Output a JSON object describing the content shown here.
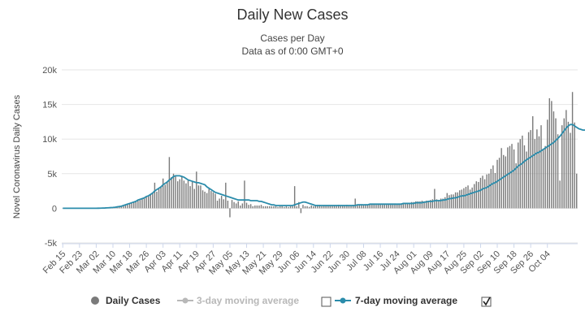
{
  "chart_data": {
    "type": "bar",
    "title": "Daily New Cases",
    "subtitle_lines": [
      "Cases per Day",
      "Data as of 0:00 GMT+0"
    ],
    "ylabel": "Novel Coronavirus Daily Cases",
    "xlabel": "",
    "ylim": [
      -5000,
      20000
    ],
    "yticks": [
      -5000,
      0,
      5000,
      10000,
      15000,
      20000
    ],
    "ytick_labels": [
      "-5k",
      "0",
      "5k",
      "10k",
      "15k",
      "20k"
    ],
    "x_tick_labels": [
      "Feb 15",
      "Feb 23",
      "Mar 02",
      "Mar 10",
      "Mar 18",
      "Mar 26",
      "Apr 03",
      "Apr 11",
      "Apr 19",
      "Apr 27",
      "May 05",
      "May 13",
      "May 21",
      "May 29",
      "Jun 06",
      "Jun 14",
      "Jun 22",
      "Jun 30",
      "Jul 08",
      "Jul 16",
      "Jul 24",
      "Aug 01",
      "Aug 09",
      "Aug 17",
      "Aug 25",
      "Sep 02",
      "Sep 10",
      "Sep 18",
      "Sep 26",
      "Oct 04"
    ],
    "x_tick_every_days": 8,
    "grid": true,
    "legend_placement": "bottom",
    "colors": {
      "bar": "#7a7a7a",
      "line": "#2b8cab",
      "muted": "#b8b8b8"
    },
    "series": [
      {
        "name": "Daily Cases",
        "visible": true,
        "kind": "bar",
        "values": [
          0,
          0,
          0,
          0,
          0,
          0,
          0,
          0,
          0,
          0,
          0,
          0,
          0,
          0,
          0,
          0,
          0,
          10,
          20,
          30,
          40,
          60,
          80,
          100,
          120,
          150,
          200,
          250,
          300,
          400,
          500,
          600,
          700,
          800,
          900,
          1000,
          1200,
          1300,
          1400,
          1500,
          1700,
          1800,
          2000,
          2200,
          3700,
          2400,
          2800,
          3100,
          4300,
          3400,
          3800,
          7400,
          4500,
          5000,
          4600,
          3900,
          4200,
          4700,
          4000,
          3600,
          4000,
          3200,
          3800,
          2800,
          5300,
          3300,
          3300,
          2600,
          2400,
          2200,
          2900,
          2500,
          2300,
          2100,
          1100,
          1400,
          1800,
          1300,
          3700,
          1100,
          -1300,
          1200,
          900,
          700,
          1000,
          400,
          700,
          4000,
          800,
          500,
          600,
          300,
          400,
          400,
          400,
          500,
          300,
          300,
          300,
          300,
          300,
          300,
          300,
          200,
          300,
          300,
          200,
          300,
          200,
          300,
          300,
          3200,
          300,
          900,
          -700,
          500,
          300,
          300,
          200,
          400,
          300,
          400,
          500,
          500,
          300,
          400,
          400,
          400,
          400,
          400,
          400,
          400,
          500,
          400,
          400,
          400,
          500,
          400,
          400,
          500,
          1400,
          500,
          600,
          600,
          500,
          600,
          500,
          600,
          600,
          600,
          500,
          600,
          600,
          500,
          600,
          500,
          600,
          700,
          700,
          700,
          600,
          700,
          700,
          700,
          800,
          800,
          800,
          900,
          900,
          1000,
          1000,
          1000,
          1100,
          1000,
          1100,
          1100,
          1200,
          1300,
          2800,
          1300,
          1200,
          1400,
          1400,
          1600,
          2200,
          1900,
          2000,
          2000,
          2300,
          2300,
          2600,
          2700,
          2900,
          3100,
          3300,
          2700,
          3000,
          3500,
          3900,
          3800,
          4400,
          4700,
          4200,
          4900,
          5000,
          5700,
          6200,
          5100,
          7000,
          7300,
          8700,
          7700,
          7500,
          8800,
          9000,
          9300,
          8500,
          6500,
          9500,
          10000,
          10500,
          9100,
          8200,
          11000,
          11300,
          13300,
          10000,
          11400,
          10400,
          12000,
          8600,
          9000,
          12800,
          15900,
          15500,
          14000,
          13000,
          10700,
          4000,
          12000,
          13000,
          14200,
          12500,
          10900,
          16800,
          12400,
          5000
        ]
      },
      {
        "name": "3-day moving average",
        "visible": false,
        "kind": "line"
      },
      {
        "name": "7-day moving average",
        "visible": true,
        "kind": "line",
        "values": [
          0,
          0,
          0,
          0,
          0,
          0,
          0,
          0,
          0,
          0,
          0,
          0,
          0,
          0,
          0,
          0,
          0,
          10,
          20,
          30,
          40,
          60,
          80,
          100,
          120,
          150,
          200,
          250,
          300,
          400,
          500,
          600,
          700,
          800,
          900,
          1000,
          1200,
          1300,
          1400,
          1500,
          1700,
          1800,
          2000,
          2200,
          2500,
          2700,
          2900,
          3100,
          3400,
          3600,
          3800,
          4100,
          4300,
          4600,
          4700,
          4700,
          4700,
          4600,
          4500,
          4300,
          4100,
          4000,
          3900,
          3800,
          3700,
          3700,
          3600,
          3500,
          3400,
          3100,
          2900,
          2700,
          2500,
          2300,
          2200,
          2100,
          2000,
          1900,
          1800,
          1700,
          1600,
          1500,
          1400,
          1300,
          1200,
          1200,
          1200,
          1200,
          1200,
          1200,
          1100,
          1100,
          1100,
          1100,
          1000,
          1000,
          900,
          800,
          700,
          600,
          500,
          500,
          400,
          400,
          400,
          400,
          400,
          400,
          400,
          400,
          400,
          500,
          600,
          700,
          800,
          900,
          900,
          800,
          700,
          600,
          500,
          400,
          400,
          400,
          400,
          400,
          400,
          400,
          400,
          400,
          400,
          400,
          400,
          400,
          400,
          400,
          400,
          400,
          400,
          400,
          400,
          500,
          500,
          500,
          500,
          500,
          500,
          600,
          600,
          600,
          600,
          600,
          600,
          600,
          600,
          600,
          600,
          600,
          600,
          600,
          600,
          600,
          600,
          700,
          700,
          700,
          700,
          700,
          700,
          800,
          800,
          800,
          800,
          900,
          900,
          1000,
          1000,
          1000,
          1100,
          1100,
          1100,
          1100,
          1200,
          1200,
          1300,
          1400,
          1400,
          1500,
          1500,
          1600,
          1700,
          1800,
          1800,
          1900,
          2000,
          2100,
          2200,
          2300,
          2400,
          2500,
          2600,
          2800,
          2900,
          3000,
          3200,
          3400,
          3600,
          3700,
          3900,
          4100,
          4300,
          4500,
          4700,
          4900,
          5100,
          5300,
          5500,
          5800,
          6100,
          6300,
          6500,
          6800,
          7000,
          7200,
          7400,
          7600,
          7800,
          8000,
          8100,
          8300,
          8500,
          8700,
          8900,
          9100,
          9300,
          9500,
          9800,
          10100,
          10400,
          10800,
          11200,
          11600,
          11900,
          12100,
          12100,
          11900,
          11700,
          11500,
          11400,
          11300,
          11300,
          11400,
          11500,
          11600,
          11700
        ]
      }
    ]
  },
  "legend": {
    "items": [
      {
        "label": "Daily Cases",
        "active": true
      },
      {
        "label": "3-day moving average",
        "active": false,
        "checked": false
      },
      {
        "label": "7-day moving average",
        "active": true,
        "checked": true
      }
    ]
  }
}
